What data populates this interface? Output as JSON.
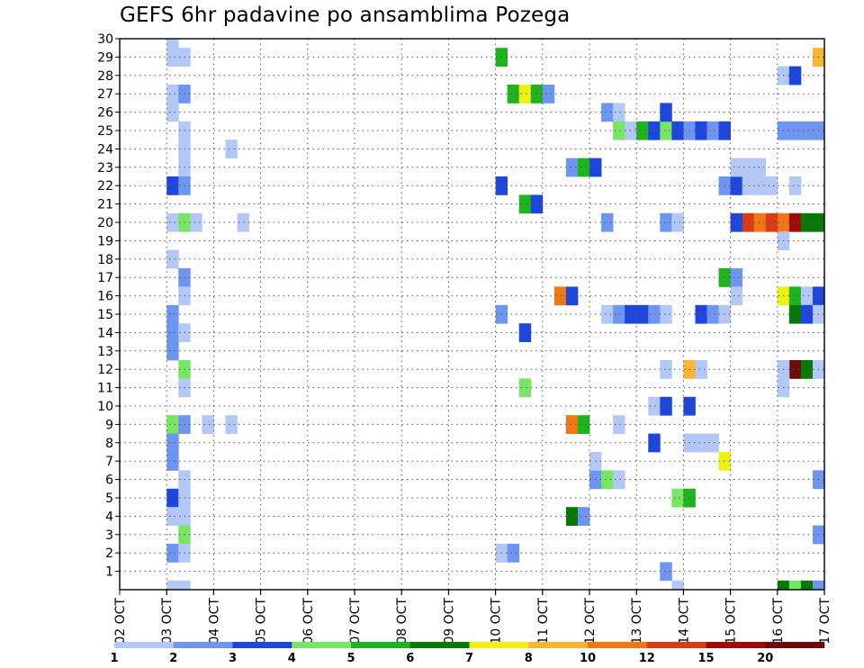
{
  "chart_data": {
    "type": "heatmap",
    "title": "GEFS 6hr padavine po ansamblima Pozega",
    "x_ticks": [
      "02 OCT",
      "03 OCT",
      "04 OCT",
      "05 OCT",
      "06 OCT",
      "07 OCT",
      "08 OCT",
      "09 OCT",
      "10 OCT",
      "11 OCT",
      "12 OCT",
      "13 OCT",
      "14 OCT",
      "15 OCT",
      "16 OCT",
      "17 OCT"
    ],
    "y_ticks": [
      "1",
      "2",
      "3",
      "4",
      "5",
      "6",
      "7",
      "8",
      "9",
      "10",
      "11",
      "12",
      "13",
      "14",
      "15",
      "16",
      "17",
      "18",
      "19",
      "20",
      "21",
      "22",
      "23",
      "24",
      "25",
      "26",
      "27",
      "28",
      "29",
      "30"
    ],
    "x_range_days": [
      0,
      15
    ],
    "y_range": [
      0,
      30
    ],
    "grid": true,
    "legend": {
      "placement": "bottom",
      "labels": [
        "1",
        "2",
        "3",
        "4",
        "5",
        "6",
        "7",
        "8",
        "10",
        "12",
        "15",
        "20"
      ],
      "colors": [
        "#b4c8f8",
        "#6e96f0",
        "#1e46dc",
        "#78e664",
        "#1eb41e",
        "#087808",
        "#f0f014",
        "#f8b432",
        "#f07814",
        "#dc3c14",
        "#a00a0a",
        "#6e0a0a"
      ]
    },
    "cells": [
      [
        1.0,
        30,
        1
      ],
      [
        1.0,
        29,
        1
      ],
      [
        1.25,
        29,
        1
      ],
      [
        1.0,
        27,
        1
      ],
      [
        1.25,
        27,
        2
      ],
      [
        1.0,
        26,
        1
      ],
      [
        1.25,
        25,
        1
      ],
      [
        1.25,
        24,
        1
      ],
      [
        2.25,
        24,
        1
      ],
      [
        1.25,
        23,
        1
      ],
      [
        1.0,
        22,
        3
      ],
      [
        1.25,
        22,
        2
      ],
      [
        1.0,
        20,
        1
      ],
      [
        1.25,
        20,
        4
      ],
      [
        1.5,
        20,
        1
      ],
      [
        2.5,
        20,
        1
      ],
      [
        1.0,
        18,
        1
      ],
      [
        1.25,
        17,
        2
      ],
      [
        1.25,
        16,
        1
      ],
      [
        1.0,
        15,
        2
      ],
      [
        1.0,
        14,
        2
      ],
      [
        1.25,
        14,
        1
      ],
      [
        1.0,
        13,
        2
      ],
      [
        1.25,
        12,
        4
      ],
      [
        1.25,
        11,
        1
      ],
      [
        1.0,
        9,
        4
      ],
      [
        1.25,
        9,
        2
      ],
      [
        1.75,
        9,
        1
      ],
      [
        2.25,
        9,
        1
      ],
      [
        1.0,
        8,
        2
      ],
      [
        1.0,
        7,
        2
      ],
      [
        1.25,
        6,
        1
      ],
      [
        1.0,
        5,
        3
      ],
      [
        1.25,
        5,
        1
      ],
      [
        1.0,
        4,
        1
      ],
      [
        1.25,
        4,
        1
      ],
      [
        1.25,
        3,
        4
      ],
      [
        1.0,
        2,
        2
      ],
      [
        1.25,
        2,
        1
      ],
      [
        1.0,
        0,
        1
      ],
      [
        1.25,
        0,
        1
      ],
      [
        8.0,
        29,
        5
      ],
      [
        8.25,
        27,
        5
      ],
      [
        8.5,
        27,
        7
      ],
      [
        8.75,
        27,
        5
      ],
      [
        9.0,
        27,
        2
      ],
      [
        8.0,
        22,
        3
      ],
      [
        8.5,
        21,
        5
      ],
      [
        8.75,
        21,
        3
      ],
      [
        8.5,
        14,
        3
      ],
      [
        8.5,
        11,
        4
      ],
      [
        8.0,
        15,
        2
      ],
      [
        8.0,
        2,
        1
      ],
      [
        8.25,
        2,
        2
      ],
      [
        9.25,
        16,
        9
      ],
      [
        9.5,
        16,
        3
      ],
      [
        9.5,
        23,
        2
      ],
      [
        9.75,
        23,
        5
      ],
      [
        10.0,
        23,
        3
      ],
      [
        9.5,
        9,
        9
      ],
      [
        9.75,
        9,
        5
      ],
      [
        9.5,
        4,
        6
      ],
      [
        9.75,
        4,
        2
      ],
      [
        10.25,
        26,
        2
      ],
      [
        10.5,
        26,
        1
      ],
      [
        10.25,
        20,
        2
      ],
      [
        10.25,
        15,
        1
      ],
      [
        10.0,
        6,
        2
      ],
      [
        10.25,
        6,
        4
      ],
      [
        10.5,
        6,
        1
      ],
      [
        10.0,
        7,
        1
      ],
      [
        10.5,
        9,
        1
      ],
      [
        10.5,
        25,
        4
      ],
      [
        10.75,
        25,
        1
      ],
      [
        11.0,
        25,
        5
      ],
      [
        11.25,
        25,
        3
      ],
      [
        11.5,
        25,
        4
      ],
      [
        11.75,
        25,
        3
      ],
      [
        12.0,
        25,
        2
      ],
      [
        12.25,
        25,
        3
      ],
      [
        12.5,
        25,
        2
      ],
      [
        12.75,
        25,
        3
      ],
      [
        11.5,
        26,
        3
      ],
      [
        11.5,
        20,
        2
      ],
      [
        11.75,
        20,
        1
      ],
      [
        10.5,
        15,
        2
      ],
      [
        10.75,
        15,
        3
      ],
      [
        11.0,
        15,
        3
      ],
      [
        11.25,
        15,
        2
      ],
      [
        11.5,
        15,
        1
      ],
      [
        11.25,
        10,
        1
      ],
      [
        11.5,
        10,
        3
      ],
      [
        11.5,
        12,
        1
      ],
      [
        12.0,
        10,
        3
      ],
      [
        11.25,
        8,
        3
      ],
      [
        12.0,
        12,
        8
      ],
      [
        12.25,
        12,
        1
      ],
      [
        11.75,
        5,
        4
      ],
      [
        12.0,
        5,
        5
      ],
      [
        12.25,
        15,
        3
      ],
      [
        12.5,
        15,
        2
      ],
      [
        12.75,
        15,
        1
      ],
      [
        11.5,
        1,
        2
      ],
      [
        11.75,
        0,
        1
      ],
      [
        12.0,
        8,
        1
      ],
      [
        12.25,
        8,
        1
      ],
      [
        12.5,
        8,
        1
      ],
      [
        12.75,
        22,
        2
      ],
      [
        13.0,
        22,
        3
      ],
      [
        12.75,
        17,
        5
      ],
      [
        13.0,
        17,
        2
      ],
      [
        13.0,
        16,
        1
      ],
      [
        12.75,
        7,
        7
      ],
      [
        13.25,
        22,
        1
      ],
      [
        13.5,
        22,
        1
      ],
      [
        13.75,
        22,
        1
      ],
      [
        13.0,
        23,
        1
      ],
      [
        13.25,
        23,
        1
      ],
      [
        13.5,
        23,
        1
      ],
      [
        13.25,
        20,
        10
      ],
      [
        13.5,
        20,
        9
      ],
      [
        13.75,
        20,
        10
      ],
      [
        14.0,
        20,
        9
      ],
      [
        14.25,
        20,
        11
      ],
      [
        14.5,
        20,
        6
      ],
      [
        14.75,
        20,
        6
      ],
      [
        13.0,
        20,
        3
      ],
      [
        14.0,
        16,
        7
      ],
      [
        14.25,
        16,
        5
      ],
      [
        14.5,
        16,
        1
      ],
      [
        14.75,
        16,
        3
      ],
      [
        14.0,
        19,
        1
      ],
      [
        14.0,
        25,
        2
      ],
      [
        14.25,
        25,
        2
      ],
      [
        14.5,
        25,
        2
      ],
      [
        14.75,
        25,
        2
      ],
      [
        14.0,
        28,
        1
      ],
      [
        14.25,
        28,
        3
      ],
      [
        14.75,
        29,
        8
      ],
      [
        14.25,
        22,
        1
      ],
      [
        14.25,
        15,
        6
      ],
      [
        14.5,
        15,
        3
      ],
      [
        14.75,
        15,
        1
      ],
      [
        14.25,
        12,
        12
      ],
      [
        14.5,
        12,
        6
      ],
      [
        14.75,
        12,
        1
      ],
      [
        14.0,
        12,
        1
      ],
      [
        14.0,
        11,
        1
      ],
      [
        14.75,
        6,
        2
      ],
      [
        14.75,
        3,
        2
      ],
      [
        14.0,
        0,
        6
      ],
      [
        14.25,
        0,
        4
      ],
      [
        14.5,
        0,
        6
      ],
      [
        14.75,
        0,
        2
      ]
    ]
  }
}
